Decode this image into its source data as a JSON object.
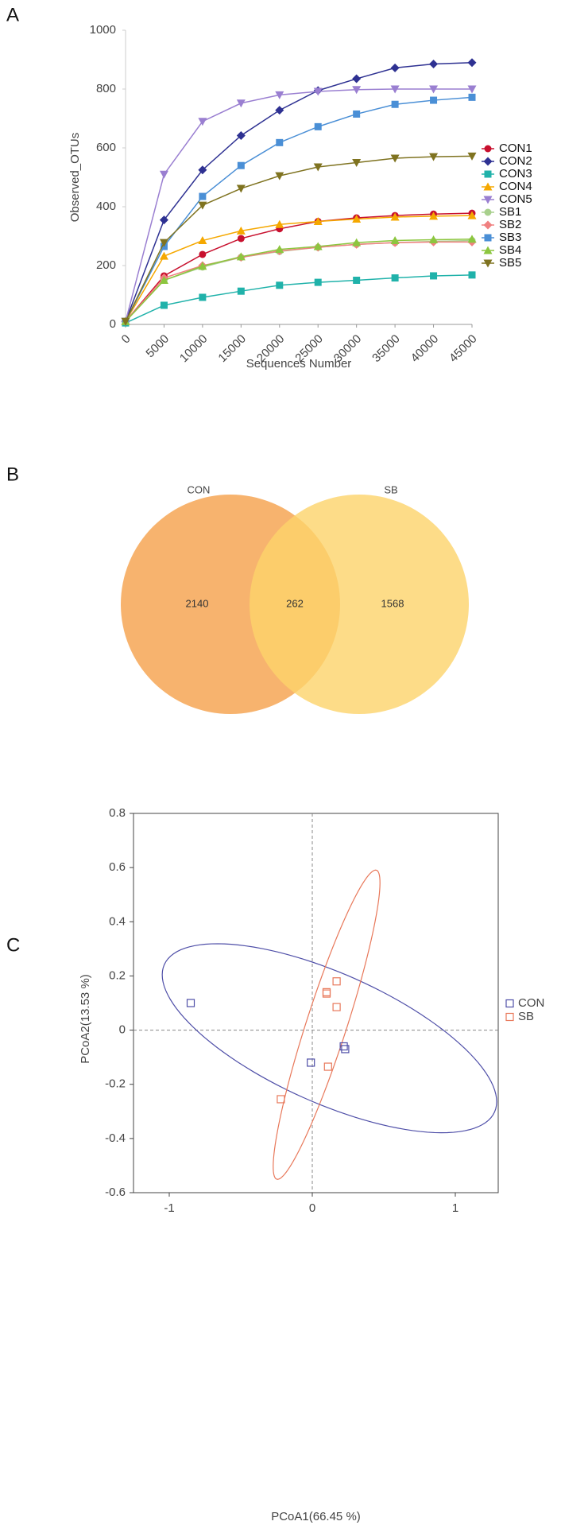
{
  "chart_data": [
    {
      "type": "line",
      "panel": "A",
      "xlabel": "Sequences Number",
      "ylabel": "Observed_OTUs",
      "x": [
        0,
        5000,
        10000,
        15000,
        20000,
        25000,
        30000,
        35000,
        40000,
        45000
      ],
      "xlim": [
        0,
        45000
      ],
      "xticks": [
        0,
        5000,
        10000,
        15000,
        20000,
        25000,
        30000,
        35000,
        40000,
        45000
      ],
      "ylim": [
        0,
        1000
      ],
      "yticks": [
        0,
        200,
        400,
        600,
        800,
        1000
      ],
      "series": [
        {
          "name": "CON1",
          "color": "#c8102e",
          "marker": "circle",
          "values": [
            10,
            165,
            238,
            292,
            325,
            350,
            362,
            370,
            375,
            378
          ]
        },
        {
          "name": "CON2",
          "color": "#2e3192",
          "marker": "diamond",
          "values": [
            10,
            355,
            525,
            642,
            728,
            795,
            835,
            872,
            885,
            890
          ]
        },
        {
          "name": "CON3",
          "color": "#20b2aa",
          "marker": "square",
          "values": [
            5,
            65,
            92,
            113,
            133,
            143,
            150,
            158,
            165,
            168
          ]
        },
        {
          "name": "CON4",
          "color": "#f5a800",
          "marker": "triangle",
          "values": [
            10,
            232,
            285,
            318,
            340,
            350,
            358,
            365,
            368,
            370
          ]
        },
        {
          "name": "CON5",
          "color": "#9a7fd1",
          "marker": "triangle-down",
          "values": [
            10,
            510,
            690,
            752,
            780,
            792,
            798,
            800,
            800,
            800
          ]
        },
        {
          "name": "SB1",
          "color": "#a8d08d",
          "marker": "circle",
          "values": [
            10,
            150,
            195,
            228,
            248,
            262,
            272,
            278,
            282,
            285
          ]
        },
        {
          "name": "SB2",
          "color": "#f08080",
          "marker": "diamond",
          "values": [
            10,
            158,
            200,
            228,
            250,
            262,
            272,
            278,
            280,
            280
          ]
        },
        {
          "name": "SB3",
          "color": "#4a8fd6",
          "marker": "square",
          "values": [
            10,
            265,
            435,
            540,
            618,
            672,
            715,
            748,
            762,
            772
          ]
        },
        {
          "name": "SB4",
          "color": "#8cc63f",
          "marker": "triangle",
          "values": [
            10,
            150,
            198,
            230,
            255,
            265,
            278,
            285,
            288,
            290
          ]
        },
        {
          "name": "SB5",
          "color": "#7f7320",
          "marker": "triangle-down",
          "values": [
            10,
            278,
            405,
            462,
            505,
            535,
            550,
            565,
            570,
            572
          ]
        }
      ]
    },
    {
      "type": "venn",
      "panel": "B",
      "sets": [
        {
          "name": "CON",
          "color": "#f5a04a",
          "only": 2140
        },
        {
          "name": "SB",
          "color": "#fdd36a",
          "only": 1568
        }
      ],
      "shared": 262
    },
    {
      "type": "scatter",
      "panel": "C",
      "xlabel": "PCoA1(66.45 %)",
      "ylabel": "PCoA2(13.53 %)",
      "xlim": [
        -1.25,
        1.3
      ],
      "xticks": [
        -1,
        0,
        1
      ],
      "ylim": [
        -0.6,
        0.8
      ],
      "yticks": [
        -0.6,
        -0.4,
        -0.2,
        0,
        0.2,
        0.4,
        0.6,
        0.8
      ],
      "series": [
        {
          "name": "CON",
          "color": "#4f4fa8",
          "x": [
            -0.85,
            -0.01,
            0.22,
            0.23
          ],
          "values": [
            0.1,
            -0.12,
            -0.06,
            -0.07
          ]
        },
        {
          "name": "SB",
          "color": "#e8785a",
          "x": [
            0.1,
            0.1,
            0.17,
            0.17,
            0.11,
            -0.22
          ],
          "values": [
            0.14,
            0.135,
            0.18,
            0.085,
            -0.135,
            -0.255
          ]
        }
      ]
    }
  ]
}
